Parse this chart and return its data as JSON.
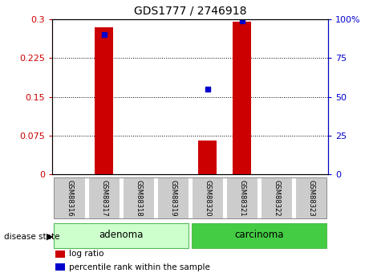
{
  "title": "GDS1777 / 2746918",
  "samples": [
    "GSM88316",
    "GSM88317",
    "GSM88318",
    "GSM88319",
    "GSM88320",
    "GSM88321",
    "GSM88322",
    "GSM88323"
  ],
  "log_ratio": [
    0.0,
    0.285,
    0.0,
    0.0,
    0.065,
    0.295,
    0.0,
    0.0
  ],
  "percentile_rank_pct": [
    null,
    90,
    null,
    null,
    55,
    99,
    null,
    null
  ],
  "ylim_left": [
    0,
    0.3
  ],
  "ylim_right": [
    0,
    100
  ],
  "yticks_left": [
    0,
    0.075,
    0.15,
    0.225,
    0.3
  ],
  "yticks_right": [
    0,
    25,
    50,
    75,
    100
  ],
  "ytick_labels_left": [
    "0",
    "0.075",
    "0.15",
    "0.225",
    "0.3"
  ],
  "ytick_labels_right": [
    "0",
    "25",
    "50",
    "75",
    "100%"
  ],
  "groups": [
    {
      "label": "adenoma",
      "start": 0,
      "end": 3,
      "color": "#ccffcc",
      "border_color": "#55bb55"
    },
    {
      "label": "carcinoma",
      "start": 4,
      "end": 7,
      "color": "#44cc44",
      "border_color": "#55bb55"
    }
  ],
  "bar_color": "#cc0000",
  "dot_color": "#0000cc",
  "bar_width": 0.55,
  "tick_color_left": "#cc0000",
  "tick_color_right": "#0000cc",
  "sample_box_color": "#cccccc",
  "disease_state_label": "disease state",
  "legend_items": [
    {
      "label": "log ratio",
      "color": "#cc0000"
    },
    {
      "label": "percentile rank within the sample",
      "color": "#0000cc"
    }
  ],
  "figsize": [
    4.65,
    3.45
  ],
  "dpi": 100
}
